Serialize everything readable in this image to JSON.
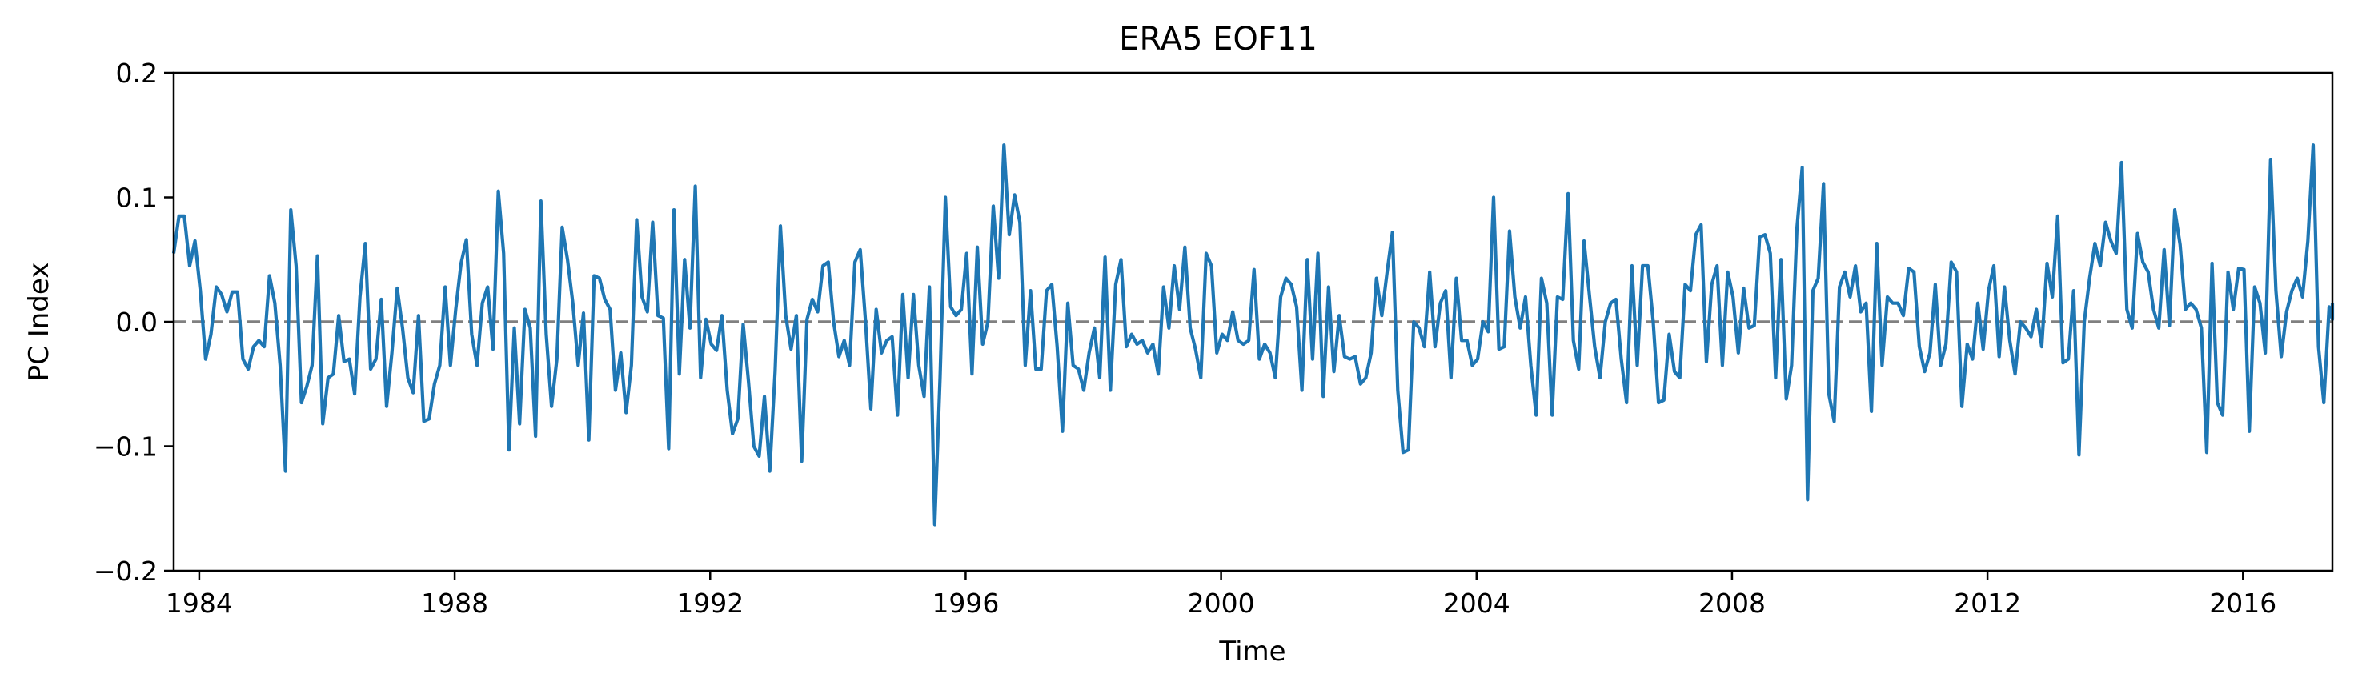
{
  "chart_data": {
    "type": "line",
    "title": "ERA5  EOF11",
    "xlabel": "Time",
    "ylabel": "PC Index",
    "xlim": [
      1983.6,
      2017.4
    ],
    "ylim": [
      -0.2,
      0.2
    ],
    "x_ticks": [
      1984,
      1988,
      1992,
      1996,
      2000,
      2004,
      2008,
      2012,
      2016
    ],
    "y_ticks": [
      {
        "value": -0.2,
        "label": "−0.2"
      },
      {
        "value": -0.1,
        "label": "−0.1"
      },
      {
        "value": 0.0,
        "label": "0.0"
      },
      {
        "value": 0.1,
        "label": "0.1"
      },
      {
        "value": 0.2,
        "label": "0.2"
      }
    ],
    "reference_line": {
      "y": 0.0,
      "style": "dashed",
      "color": "#808080"
    },
    "grid": false,
    "series": [
      {
        "color": "#1f77b4",
        "x_start": 1983.6,
        "x_step": 0.08333,
        "values": [
          0.055,
          0.085,
          0.085,
          0.045,
          0.065,
          0.025,
          -0.03,
          -0.01,
          0.028,
          0.022,
          0.008,
          0.024,
          0.024,
          -0.03,
          -0.038,
          -0.02,
          -0.015,
          -0.02,
          0.037,
          0.015,
          -0.035,
          -0.12,
          0.09,
          0.045,
          -0.065,
          -0.052,
          -0.035,
          0.053,
          -0.082,
          -0.045,
          -0.042,
          0.005,
          -0.032,
          -0.03,
          -0.058,
          0.02,
          0.063,
          -0.038,
          -0.03,
          0.018,
          -0.068,
          -0.025,
          0.027,
          -0.005,
          -0.045,
          -0.057,
          0.005,
          -0.08,
          -0.078,
          -0.05,
          -0.035,
          0.028,
          -0.035,
          0.01,
          0.047,
          0.066,
          -0.01,
          -0.035,
          0.015,
          0.028,
          -0.022,
          0.105,
          0.055,
          -0.103,
          -0.005,
          -0.082,
          0.01,
          -0.005,
          -0.092,
          0.097,
          -0.01,
          -0.068,
          -0.03,
          0.076,
          0.05,
          0.015,
          -0.035,
          0.007,
          -0.095,
          0.037,
          0.035,
          0.018,
          0.01,
          -0.055,
          -0.025,
          -0.073,
          -0.035,
          0.082,
          0.02,
          0.008,
          0.08,
          0.005,
          0.003,
          -0.102,
          0.09,
          -0.042,
          0.05,
          -0.005,
          0.109,
          -0.045,
          0.002,
          -0.018,
          -0.023,
          0.005,
          -0.055,
          -0.09,
          -0.078,
          -0.002,
          -0.048,
          -0.1,
          -0.108,
          -0.06,
          -0.12,
          -0.04,
          0.077,
          0.005,
          -0.022,
          0.005,
          -0.112,
          0.002,
          0.018,
          0.008,
          0.045,
          0.048,
          0.0,
          -0.028,
          -0.015,
          -0.035,
          0.048,
          0.058,
          0.0,
          -0.07,
          0.01,
          -0.025,
          -0.015,
          -0.012,
          -0.075,
          0.022,
          -0.045,
          0.022,
          -0.035,
          -0.06,
          0.028,
          -0.163,
          -0.045,
          0.1,
          0.012,
          0.005,
          0.01,
          0.055,
          -0.042,
          0.06,
          -0.018,
          0.0,
          0.093,
          0.035,
          0.142,
          0.07,
          0.102,
          0.08,
          -0.035,
          0.025,
          -0.038,
          -0.038,
          0.025,
          0.03,
          -0.02,
          -0.088,
          0.015,
          -0.035,
          -0.038,
          -0.055,
          -0.025,
          -0.005,
          -0.045,
          0.052,
          -0.055,
          0.03,
          0.05,
          -0.02,
          -0.01,
          -0.018,
          -0.015,
          -0.025,
          -0.018,
          -0.042,
          0.028,
          -0.005,
          0.045,
          0.01,
          0.06,
          -0.005,
          -0.022,
          -0.045,
          0.055,
          0.045,
          -0.025,
          -0.01,
          -0.015,
          0.008,
          -0.015,
          -0.018,
          -0.015,
          0.042,
          -0.03,
          -0.018,
          -0.025,
          -0.045,
          0.02,
          0.035,
          0.03,
          0.012,
          -0.055,
          0.05,
          -0.03,
          0.055,
          -0.06,
          0.028,
          -0.04,
          0.005,
          -0.028,
          -0.03,
          -0.028,
          -0.05,
          -0.045,
          -0.025,
          0.035,
          0.005,
          0.04,
          0.072,
          -0.055,
          -0.105,
          -0.103,
          0.0,
          -0.005,
          -0.02,
          0.04,
          -0.02,
          0.015,
          0.025,
          -0.045,
          0.035,
          -0.015,
          -0.015,
          -0.035,
          -0.03,
          0.0,
          -0.008,
          0.1,
          -0.022,
          -0.02,
          0.073,
          0.02,
          -0.005,
          0.02,
          -0.035,
          -0.075,
          0.035,
          0.015,
          -0.075,
          0.02,
          0.018,
          0.103,
          -0.015,
          -0.038,
          0.065,
          0.022,
          -0.02,
          -0.045,
          0.0,
          0.015,
          0.018,
          -0.03,
          -0.065,
          0.045,
          -0.035,
          0.045,
          0.045,
          0.0,
          -0.065,
          -0.063,
          -0.01,
          -0.04,
          -0.045,
          0.03,
          0.025,
          0.07,
          0.078,
          -0.032,
          0.03,
          0.045,
          -0.035,
          0.04,
          0.02,
          -0.025,
          0.027,
          -0.005,
          -0.003,
          0.068,
          0.07,
          0.055,
          -0.045,
          0.05,
          -0.062,
          -0.035,
          0.075,
          0.124,
          -0.143,
          0.025,
          0.035,
          0.111,
          -0.058,
          -0.08,
          0.028,
          0.04,
          0.02,
          0.045,
          0.008,
          0.015,
          -0.072,
          0.063,
          -0.035,
          0.02,
          0.015,
          0.015,
          0.005,
          0.043,
          0.04,
          -0.02,
          -0.04,
          -0.025,
          0.03,
          -0.035,
          -0.018,
          0.048,
          0.04,
          -0.068,
          -0.018,
          -0.03,
          0.015,
          -0.022,
          0.025,
          0.045,
          -0.028,
          0.028,
          -0.015,
          -0.042,
          0.0,
          -0.005,
          -0.012,
          0.01,
          -0.02,
          0.047,
          0.02,
          0.085,
          -0.033,
          -0.03,
          0.025,
          -0.107,
          0.0,
          0.035,
          0.063,
          0.045,
          0.08,
          0.065,
          0.055,
          0.128,
          0.01,
          -0.005,
          0.071,
          0.048,
          0.04,
          0.01,
          -0.005,
          0.058,
          -0.003,
          0.09,
          0.062,
          0.01,
          0.015,
          0.01,
          -0.005,
          -0.105,
          0.047,
          -0.065,
          -0.075,
          0.04,
          0.01,
          0.043,
          0.042,
          -0.088,
          0.028,
          0.015,
          -0.025,
          0.13,
          0.025,
          -0.028,
          0.008,
          0.025,
          0.035,
          0.02,
          0.065,
          0.142,
          -0.02,
          -0.065,
          0.012,
          0.002,
          0.015
        ]
      }
    ]
  }
}
